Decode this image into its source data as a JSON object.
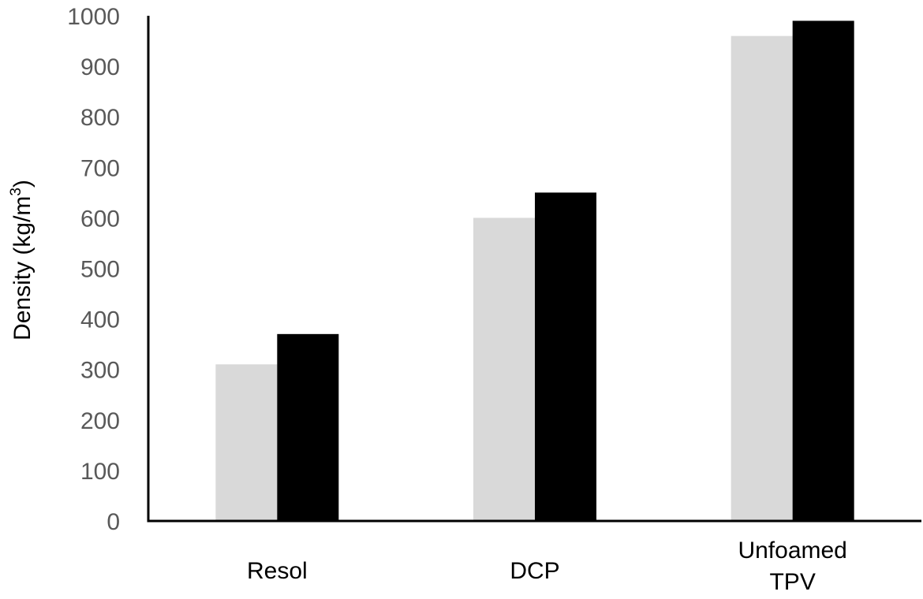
{
  "chart_data": {
    "type": "bar",
    "categories": [
      "Resol",
      "DCP",
      "Unfoamed TPV"
    ],
    "category_label_lines": [
      [
        "Resol"
      ],
      [
        "DCP"
      ],
      [
        "Unfoamed",
        "TPV"
      ]
    ],
    "series": [
      {
        "name": "",
        "color": "#d9d9d9",
        "values": [
          310,
          600,
          960
        ]
      },
      {
        "name": "",
        "color": "#000000",
        "values": [
          370,
          650,
          990
        ]
      }
    ],
    "ylabel": {
      "main": "Density (kg/m",
      "superscript": "3",
      "tail": ")"
    },
    "xlabel": "",
    "title": "",
    "ylim": [
      0,
      1000
    ],
    "yticks": [
      0,
      100,
      200,
      300,
      400,
      500,
      600,
      700,
      800,
      900,
      1000
    ],
    "grid": false,
    "legend": "none",
    "colors": {
      "axis": "#000000",
      "tick_text": "#595959",
      "category_text": "#000000"
    }
  }
}
